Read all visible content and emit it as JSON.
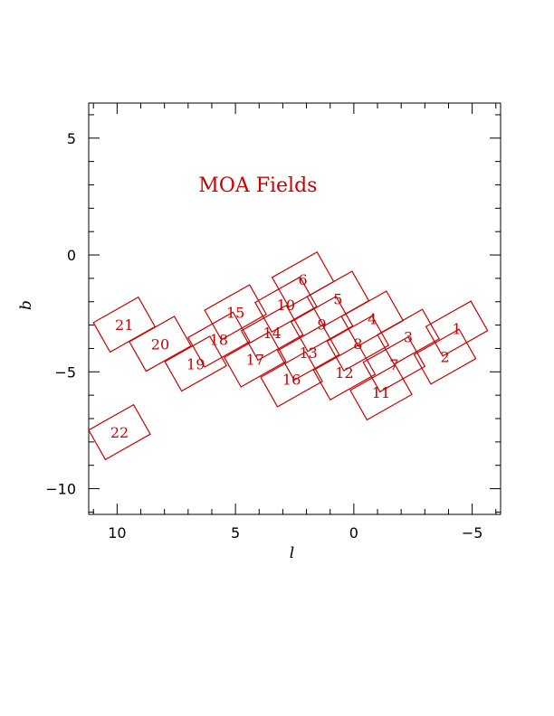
{
  "chart_data": {
    "type": "scatter",
    "title": "MOA Fields",
    "xlabel": "l",
    "ylabel": "b",
    "xlim": [
      11.2,
      -6.2
    ],
    "ylim": [
      -11.1,
      6.5
    ],
    "x_ticks": [
      10,
      5,
      0,
      -5
    ],
    "x_tick_labels": [
      "10",
      "5",
      "0",
      "−5"
    ],
    "y_ticks": [
      5,
      0,
      -5,
      -10
    ],
    "y_tick_labels": [
      "5",
      "0",
      "−5",
      "−10"
    ],
    "x_minor_step": 1,
    "y_minor_step": 1,
    "grid": false,
    "color": "#cc0000",
    "field_size": [
      2.18,
      1.45
    ],
    "field_angle_deg": -29.5,
    "fields": [
      {
        "id": "1",
        "l": -4.35,
        "b": -3.15
      },
      {
        "id": "2",
        "l": -3.85,
        "b": -4.35
      },
      {
        "id": "3",
        "l": -2.3,
        "b": -3.5
      },
      {
        "id": "4",
        "l": -0.78,
        "b": -2.72
      },
      {
        "id": "5",
        "l": 0.67,
        "b": -1.87
      },
      {
        "id": "6",
        "l": 2.15,
        "b": -1.05
      },
      {
        "id": "7",
        "l": -1.7,
        "b": -4.68
      },
      {
        "id": "8",
        "l": -0.17,
        "b": -3.78
      },
      {
        "id": "9",
        "l": 1.35,
        "b": -2.95
      },
      {
        "id": "10",
        "l": 2.87,
        "b": -2.12
      },
      {
        "id": "11",
        "l": -1.15,
        "b": -5.88
      },
      {
        "id": "12",
        "l": 0.4,
        "b": -5.02
      },
      {
        "id": "13",
        "l": 1.92,
        "b": -4.18
      },
      {
        "id": "14",
        "l": 3.45,
        "b": -3.33
      },
      {
        "id": "15",
        "l": 5.0,
        "b": -2.45
      },
      {
        "id": "16",
        "l": 2.63,
        "b": -5.32
      },
      {
        "id": "17",
        "l": 4.17,
        "b": -4.47
      },
      {
        "id": "18",
        "l": 5.7,
        "b": -3.62
      },
      {
        "id": "19",
        "l": 6.68,
        "b": -4.65
      },
      {
        "id": "20",
        "l": 8.18,
        "b": -3.8
      },
      {
        "id": "21",
        "l": 9.7,
        "b": -2.98
      },
      {
        "id": "22",
        "l": 9.9,
        "b": -7.58
      }
    ]
  }
}
